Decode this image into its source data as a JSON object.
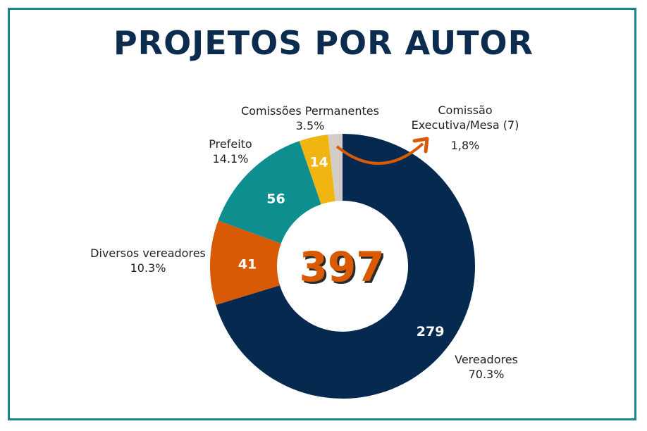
{
  "chart_data": {
    "type": "pie",
    "style": "donut",
    "title": "PROJETOS POR AUTOR",
    "center_label": "397",
    "slices": [
      {
        "name": "Vereadores",
        "value": 279,
        "percent_label": "70.3%",
        "color": "#062a4f"
      },
      {
        "name": "Diversos vereadores",
        "value": 41,
        "percent_label": "10.3%",
        "color": "#d95a04"
      },
      {
        "name": "Prefeito",
        "value": 56,
        "percent_label": "14.1%",
        "color": "#0e8e8e"
      },
      {
        "name": "Comissões Permanentes",
        "value": 14,
        "percent_label": "3.5%",
        "color": "#f0b510"
      },
      {
        "name": "Comissão Executiva/Mesa (7)",
        "value": 7,
        "percent_label": "1,8%",
        "color": "#d4ccc6"
      }
    ],
    "legend": "none",
    "accent_color": "#d95a04",
    "frame_color": "#158b88"
  }
}
